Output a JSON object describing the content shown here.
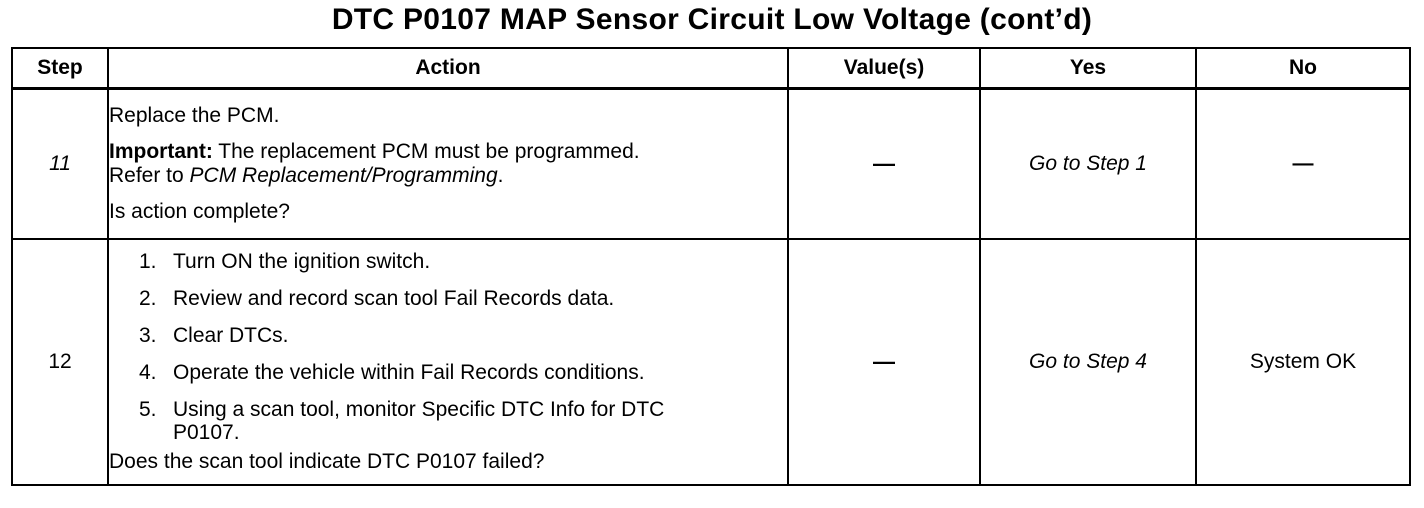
{
  "title": "DTC P0107 MAP Sensor Circuit Low Voltage (cont’d)",
  "headers": {
    "step": "Step",
    "action": "Action",
    "value": "Value(s)",
    "yes": "Yes",
    "no": "No"
  },
  "rows": [
    {
      "step": "11",
      "action": {
        "line1": "Replace the PCM.",
        "important_label": "Important:",
        "important_text": " The replacement PCM must be programmed.",
        "refer_text": "Refer to ",
        "refer_link": "PCM Replacement/Programming",
        "refer_end": ".",
        "question": "Is action complete?"
      },
      "value": "—",
      "yes": "Go to Step 1",
      "no": "—"
    },
    {
      "step": "12",
      "action": {
        "steps": [
          {
            "num": "1.",
            "text": "Turn ON the ignition switch."
          },
          {
            "num": "2.",
            "text": "Review and record scan tool Fail Records data."
          },
          {
            "num": "3.",
            "text": "Clear DTCs."
          },
          {
            "num": "4.",
            "text": "Operate the vehicle within Fail Records conditions."
          },
          {
            "num": "5.",
            "text": "Using a scan tool, monitor Specific DTC Info for DTC P0107."
          }
        ],
        "question": "Does the scan tool indicate DTC P0107 failed?"
      },
      "value": "—",
      "yes": "Go to Step 4",
      "no": "System OK"
    }
  ]
}
